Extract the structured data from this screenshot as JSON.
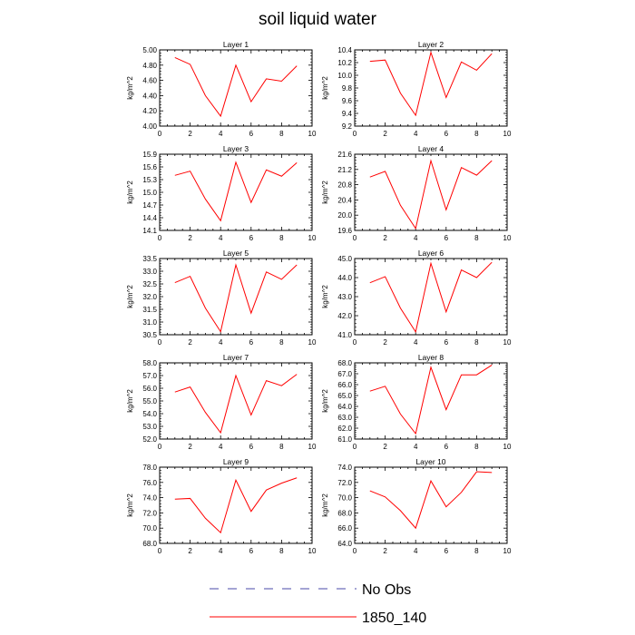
{
  "figure": {
    "title": "soil liquid water",
    "legend": [
      {
        "label": "No Obs",
        "color": "#4a4aa8",
        "style": "dashed"
      },
      {
        "label": "1850_140",
        "color": "#ff0000",
        "style": "solid"
      }
    ]
  },
  "chart_data": [
    {
      "type": "line",
      "title": "Layer 1",
      "ylabel": "kg/m^2",
      "xlim": [
        0,
        10
      ],
      "xticks": [
        0,
        2,
        4,
        6,
        8,
        10
      ],
      "ylim": [
        4.0,
        5.0
      ],
      "yticks": [
        "4.00",
        "4.20",
        "4.40",
        "4.60",
        "4.80",
        "5.00"
      ],
      "x": [
        1,
        2,
        3,
        4,
        5,
        6,
        7,
        8,
        9
      ],
      "series": [
        {
          "name": "1850_140",
          "color": "#ff0000",
          "values": [
            4.9,
            4.81,
            4.4,
            4.13,
            4.8,
            4.32,
            4.62,
            4.59,
            4.79
          ]
        }
      ]
    },
    {
      "type": "line",
      "title": "Layer 2",
      "ylabel": "kg/m^2",
      "xlim": [
        0,
        10
      ],
      "xticks": [
        0,
        2,
        4,
        6,
        8,
        10
      ],
      "ylim": [
        9.2,
        10.4
      ],
      "yticks": [
        "9.2",
        "9.4",
        "9.6",
        "9.8",
        "10.0",
        "10.2",
        "10.4"
      ],
      "x": [
        1,
        2,
        3,
        4,
        5,
        6,
        7,
        8,
        9
      ],
      "series": [
        {
          "name": "1850_140",
          "color": "#ff0000",
          "values": [
            10.22,
            10.24,
            9.72,
            9.37,
            10.36,
            9.65,
            10.21,
            10.08,
            10.34
          ]
        }
      ]
    },
    {
      "type": "line",
      "title": "Layer 3",
      "ylabel": "kg/m^2",
      "xlim": [
        0,
        10
      ],
      "xticks": [
        0,
        2,
        4,
        6,
        8,
        10
      ],
      "ylim": [
        14.1,
        15.9
      ],
      "yticks": [
        "14.1",
        "14.4",
        "14.7",
        "15.0",
        "15.3",
        "15.6",
        "15.9"
      ],
      "x": [
        1,
        2,
        3,
        4,
        5,
        6,
        7,
        8,
        9
      ],
      "series": [
        {
          "name": "1850_140",
          "color": "#ff0000",
          "values": [
            15.4,
            15.5,
            14.84,
            14.33,
            15.71,
            14.76,
            15.53,
            15.38,
            15.7
          ]
        }
      ]
    },
    {
      "type": "line",
      "title": "Layer 4",
      "ylabel": "kg/m^2",
      "xlim": [
        0,
        10
      ],
      "xticks": [
        0,
        2,
        4,
        6,
        8,
        10
      ],
      "ylim": [
        19.6,
        21.6
      ],
      "yticks": [
        "19.6",
        "20.0",
        "20.4",
        "20.8",
        "21.2",
        "21.6"
      ],
      "x": [
        1,
        2,
        3,
        4,
        5,
        6,
        7,
        8,
        9
      ],
      "series": [
        {
          "name": "1850_140",
          "color": "#ff0000",
          "values": [
            21.0,
            21.15,
            20.26,
            19.65,
            21.43,
            20.14,
            21.25,
            21.05,
            21.43
          ]
        }
      ]
    },
    {
      "type": "line",
      "title": "Layer 5",
      "ylabel": "kg/m^2",
      "xlim": [
        0,
        10
      ],
      "xticks": [
        0,
        2,
        4,
        6,
        8,
        10
      ],
      "ylim": [
        30.5,
        33.5
      ],
      "yticks": [
        "30.5",
        "31.0",
        "31.5",
        "32.0",
        "32.5",
        "33.0",
        "33.5"
      ],
      "x": [
        1,
        2,
        3,
        4,
        5,
        6,
        7,
        8,
        9
      ],
      "series": [
        {
          "name": "1850_140",
          "color": "#ff0000",
          "values": [
            32.55,
            32.8,
            31.55,
            30.62,
            33.25,
            31.35,
            32.97,
            32.68,
            33.25
          ]
        }
      ]
    },
    {
      "type": "line",
      "title": "Layer 6",
      "ylabel": "kg/m^2",
      "xlim": [
        0,
        10
      ],
      "xticks": [
        0,
        2,
        4,
        6,
        8,
        10
      ],
      "ylim": [
        41.0,
        45.0
      ],
      "yticks": [
        "41.0",
        "42.0",
        "43.0",
        "44.0",
        "45.0"
      ],
      "x": [
        1,
        2,
        3,
        4,
        5,
        6,
        7,
        8,
        9
      ],
      "series": [
        {
          "name": "1850_140",
          "color": "#ff0000",
          "values": [
            43.73,
            44.05,
            42.4,
            41.15,
            44.75,
            42.2,
            44.4,
            44.0,
            44.8
          ]
        }
      ]
    },
    {
      "type": "line",
      "title": "Layer 7",
      "ylabel": "kg/m^2",
      "xlim": [
        0,
        10
      ],
      "xticks": [
        0,
        2,
        4,
        6,
        8,
        10
      ],
      "ylim": [
        52.0,
        58.0
      ],
      "yticks": [
        "52.0",
        "53.0",
        "54.0",
        "55.0",
        "56.0",
        "57.0",
        "58.0"
      ],
      "x": [
        1,
        2,
        3,
        4,
        5,
        6,
        7,
        8,
        9
      ],
      "series": [
        {
          "name": "1850_140",
          "color": "#ff0000",
          "values": [
            55.7,
            56.1,
            54.1,
            52.5,
            57.0,
            53.9,
            56.6,
            56.2,
            57.1
          ]
        }
      ]
    },
    {
      "type": "line",
      "title": "Layer 8",
      "ylabel": "kg/m^2",
      "xlim": [
        0,
        10
      ],
      "xticks": [
        0,
        2,
        4,
        6,
        8,
        10
      ],
      "ylim": [
        61.0,
        68.0
      ],
      "yticks": [
        "61.0",
        "62.0",
        "63.0",
        "64.0",
        "65.0",
        "66.0",
        "67.0",
        "68.0"
      ],
      "x": [
        1,
        2,
        3,
        4,
        5,
        6,
        7,
        8,
        9
      ],
      "series": [
        {
          "name": "1850_140",
          "color": "#ff0000",
          "values": [
            65.4,
            65.85,
            63.3,
            61.5,
            67.6,
            63.7,
            66.9,
            66.9,
            67.8
          ]
        }
      ]
    },
    {
      "type": "line",
      "title": "Layer 9",
      "ylabel": "kg/m^2",
      "xlim": [
        0,
        10
      ],
      "xticks": [
        0,
        2,
        4,
        6,
        8,
        10
      ],
      "ylim": [
        68.0,
        78.0
      ],
      "yticks": [
        "68.0",
        "70.0",
        "72.0",
        "74.0",
        "76.0",
        "78.0"
      ],
      "x": [
        1,
        2,
        3,
        4,
        5,
        6,
        7,
        8,
        9
      ],
      "series": [
        {
          "name": "1850_140",
          "color": "#ff0000",
          "values": [
            73.8,
            73.9,
            71.3,
            69.4,
            76.3,
            72.2,
            75.0,
            75.9,
            76.6
          ]
        }
      ]
    },
    {
      "type": "line",
      "title": "Layer 10",
      "ylabel": "kg/m^2",
      "xlim": [
        0,
        10
      ],
      "xticks": [
        0,
        2,
        4,
        6,
        8,
        10
      ],
      "ylim": [
        64.0,
        74.0
      ],
      "yticks": [
        "64.0",
        "66.0",
        "68.0",
        "70.0",
        "72.0",
        "74.0"
      ],
      "x": [
        1,
        2,
        3,
        4,
        5,
        6,
        7,
        8,
        9
      ],
      "series": [
        {
          "name": "1850_140",
          "color": "#ff0000",
          "values": [
            70.9,
            70.1,
            68.3,
            66.0,
            72.2,
            68.8,
            70.7,
            73.4,
            73.3
          ]
        }
      ]
    }
  ]
}
